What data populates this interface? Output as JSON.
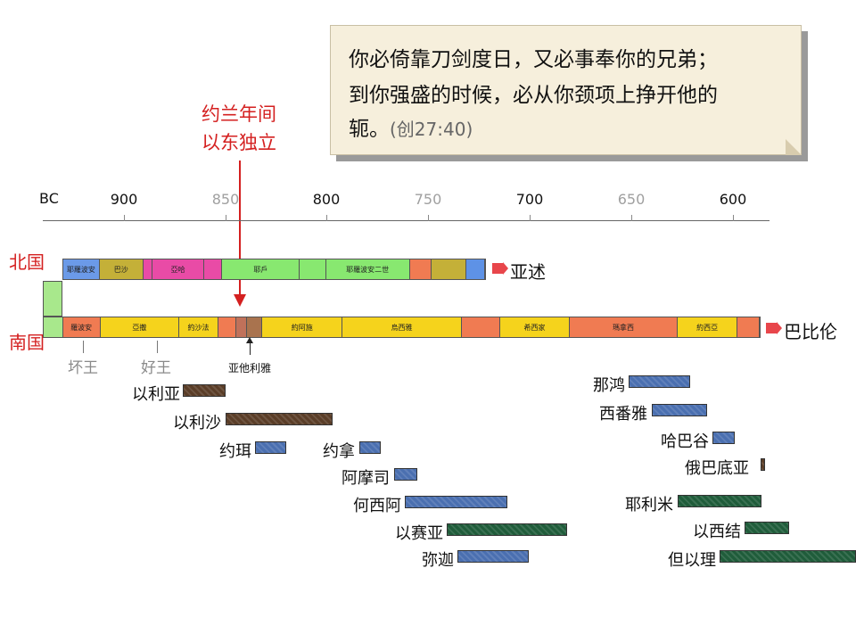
{
  "quote": {
    "line1": "你必倚靠刀剑度日，又必事奉你的兄弟；",
    "line2": "到你强盛的时候，必从你颈项上挣开他的",
    "line3": "轭。",
    "reference": "(创27:40)"
  },
  "event": {
    "line1": "约兰年间",
    "line2": "以东独立",
    "color": "#d42020"
  },
  "axis": {
    "era": "BC",
    "ticks": [
      {
        "label": "900",
        "style": "dark"
      },
      {
        "label": "850",
        "style": "grey"
      },
      {
        "label": "800",
        "style": "dark"
      },
      {
        "label": "750",
        "style": "grey"
      },
      {
        "label": "700",
        "style": "dark"
      },
      {
        "label": "650",
        "style": "grey"
      },
      {
        "label": "600",
        "style": "dark"
      }
    ]
  },
  "north": {
    "label": "北国",
    "destination": "亚述",
    "segments": [
      {
        "label": "耶羅波安",
        "color": "#6b9ae8"
      },
      {
        "label": "巴沙",
        "color": "#c4b038"
      },
      {
        "label": "",
        "color": "#e94ba6"
      },
      {
        "label": "亞哈",
        "color": "#e94ba6"
      },
      {
        "label": "",
        "color": "#e94ba6"
      },
      {
        "label": "耶戶",
        "color": "#88e870"
      },
      {
        "label": "",
        "color": "#88e870"
      },
      {
        "label": "耶羅波安二世",
        "color": "#88e870"
      },
      {
        "label": "",
        "color": "#f07b52"
      },
      {
        "label": "",
        "color": "#c4b038"
      },
      {
        "label": "",
        "color": "#5e92e6"
      }
    ]
  },
  "south": {
    "label": "南国",
    "destination": "巴比伦",
    "segments": [
      {
        "label": "",
        "color": "#a8e88c"
      },
      {
        "label": "羅波安",
        "color": "#f07b52"
      },
      {
        "label": "亞撒",
        "color": "#f5d31c"
      },
      {
        "label": "約沙法",
        "color": "#f5d31c"
      },
      {
        "label": "",
        "color": "#f07b52"
      },
      {
        "label": "",
        "color": "#c0715a"
      },
      {
        "label": "",
        "color": "#a9734e"
      },
      {
        "label": "約阿施",
        "color": "#f5d31c"
      },
      {
        "label": "烏西雅",
        "color": "#f5d31c"
      },
      {
        "label": "",
        "color": "#f07b52"
      },
      {
        "label": "希西家",
        "color": "#f5d31c"
      },
      {
        "label": "瑪拿西",
        "color": "#f07b52"
      },
      {
        "label": "約西亞",
        "color": "#f5d31c"
      },
      {
        "label": "",
        "color": "#f07b52"
      }
    ],
    "annotations": {
      "bad": "坏王",
      "good": "好王",
      "athaliah": "亚他利雅"
    }
  },
  "prophets": [
    {
      "name": "以利亚",
      "color": "brown"
    },
    {
      "name": "以利沙",
      "color": "brown"
    },
    {
      "name": "约珥",
      "color": "blue"
    },
    {
      "name": "约拿",
      "color": "blue"
    },
    {
      "name": "阿摩司",
      "color": "blue"
    },
    {
      "name": "何西阿",
      "color": "blue"
    },
    {
      "name": "以赛亚",
      "color": "green"
    },
    {
      "name": "弥迦",
      "color": "blue"
    },
    {
      "name": "那鸿",
      "color": "blue"
    },
    {
      "name": "西番雅",
      "color": "blue"
    },
    {
      "name": "哈巴谷",
      "color": "blue"
    },
    {
      "name": "俄巴底亚",
      "color": "brown"
    },
    {
      "name": "耶利米",
      "color": "green"
    },
    {
      "name": "以西结",
      "color": "green"
    },
    {
      "name": "但以理",
      "color": "green"
    }
  ]
}
